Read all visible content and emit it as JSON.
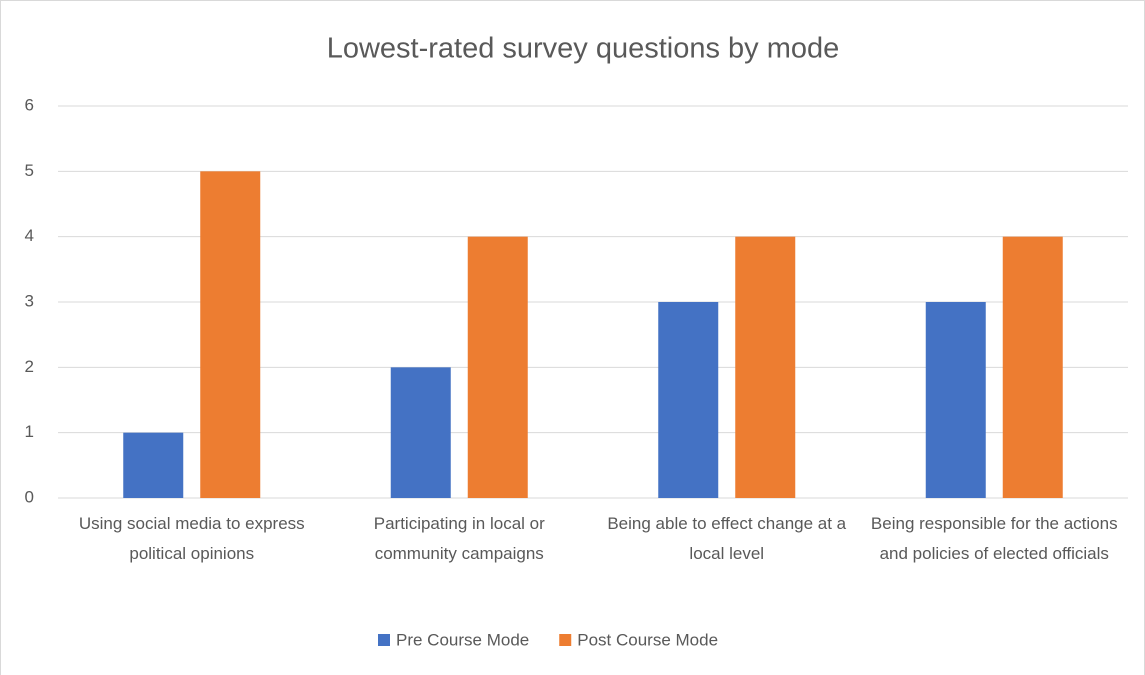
{
  "chart_data": {
    "type": "bar",
    "title": "Lowest-rated survey questions by mode",
    "categories": [
      "Using social media to express political opinions",
      "Participating in local or community campaigns",
      "Being able to effect change at a local level",
      "Being responsible for the actions and policies of elected officials"
    ],
    "series": [
      {
        "name": "Pre Course Mode",
        "color": "#4472c4",
        "values": [
          1,
          2,
          3,
          3
        ]
      },
      {
        "name": "Post Course Mode",
        "color": "#ed7d31",
        "values": [
          5,
          4,
          4,
          4
        ]
      }
    ],
    "ylim": [
      0,
      6
    ],
    "yticks": [
      0,
      1,
      2,
      3,
      4,
      5,
      6
    ],
    "grid": true,
    "legend": "bottom"
  }
}
